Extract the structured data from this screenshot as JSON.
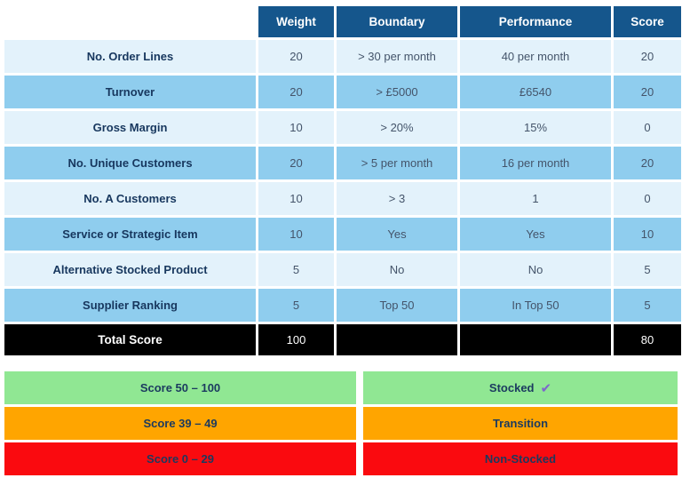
{
  "colors": {
    "header_blue": "#15568C",
    "row_light_blue": "#E3F2FB",
    "row_mid_blue": "#8FCDEE",
    "label_text": "#17375E",
    "value_text": "#44546A",
    "total_row_bg": "#000000",
    "legend_green": "#90E793",
    "legend_orange": "#FFA500",
    "legend_red": "#FA0A0F",
    "check_purple": "#7D67CB"
  },
  "table": {
    "headers": {
      "weight": "Weight",
      "boundary": "Boundary",
      "performance": "Performance",
      "score": "Score"
    },
    "rows": [
      {
        "label": "No. Order Lines",
        "weight": "20",
        "boundary": "> 30 per month",
        "performance": "40 per month",
        "score": "20"
      },
      {
        "label": "Turnover",
        "weight": "20",
        "boundary": "> £5000",
        "performance": "£6540",
        "score": "20"
      },
      {
        "label": "Gross Margin",
        "weight": "10",
        "boundary": "> 20%",
        "performance": "15%",
        "score": "0"
      },
      {
        "label": "No. Unique Customers",
        "weight": "20",
        "boundary": "> 5 per month",
        "performance": "16 per month",
        "score": "20"
      },
      {
        "label": "No. A Customers",
        "weight": "10",
        "boundary": "> 3",
        "performance": "1",
        "score": "0"
      },
      {
        "label": "Service or Strategic Item",
        "weight": "10",
        "boundary": "Yes",
        "performance": "Yes",
        "score": "10"
      },
      {
        "label": "Alternative Stocked Product",
        "weight": "5",
        "boundary": "No",
        "performance": "No",
        "score": "5"
      },
      {
        "label": "Supplier Ranking",
        "weight": "5",
        "boundary": "Top 50",
        "performance": "In Top 50",
        "score": "5"
      }
    ],
    "total": {
      "label": "Total Score",
      "weight": "100",
      "boundary": "",
      "performance": "",
      "score": "80"
    }
  },
  "legend": {
    "check_glyph": "✔",
    "rows": [
      {
        "range": "Score 50 – 100",
        "status": "Stocked",
        "color": "green"
      },
      {
        "range": "Score 39 – 49",
        "status": "Transition",
        "color": "orange"
      },
      {
        "range": "Score 0 – 29",
        "status": "Non-Stocked",
        "color": "red"
      }
    ]
  }
}
